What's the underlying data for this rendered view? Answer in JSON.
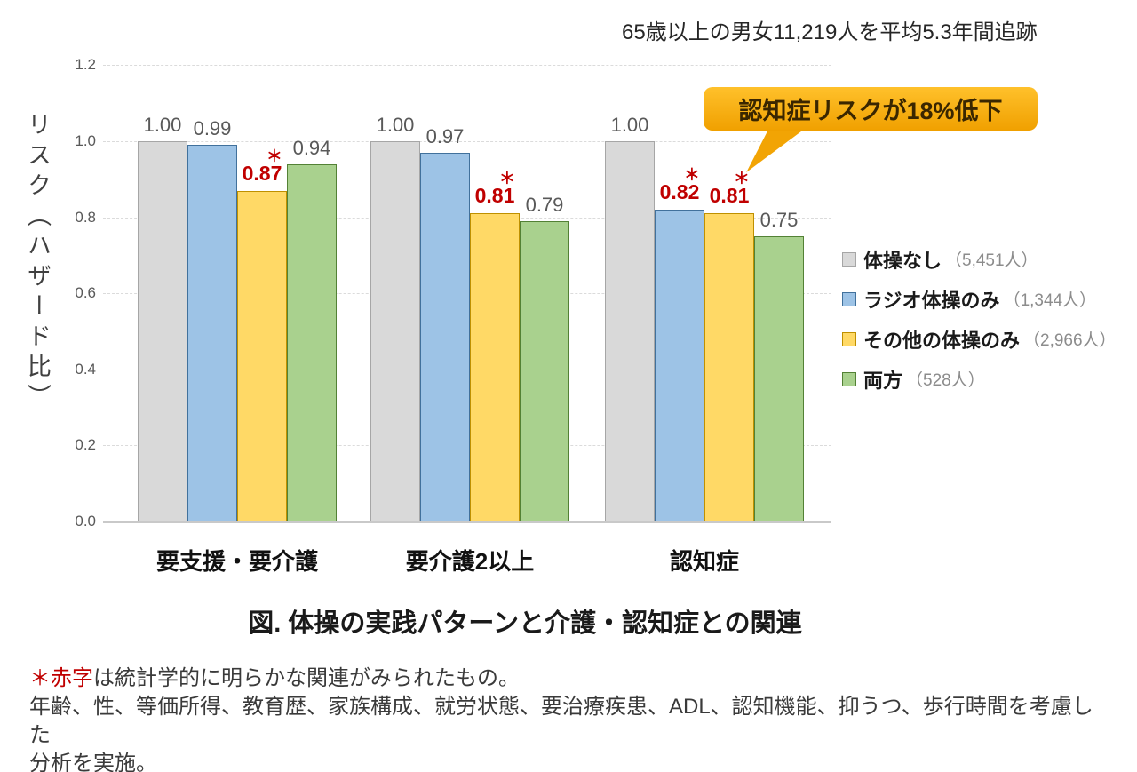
{
  "header": {
    "annotation": "65歳以上の男女11,219人を平均5.3年間追跡"
  },
  "chart_data": {
    "type": "bar",
    "title": "図. 体操の実践パターンと介護・認知症との関連",
    "ylabel": "リスク（ハザード比）",
    "xlabel": "",
    "ylim": [
      0,
      1.2
    ],
    "yticks": [
      1.2,
      1.0,
      0.8,
      0.6,
      0.4,
      0.2,
      0.0
    ],
    "ytick_labels": [
      "1.2",
      "1.0",
      "0.8",
      "0.6",
      "0.4",
      "0.2",
      "0.0"
    ],
    "grid": "horizontal dashed",
    "legend_position": "right",
    "categories": [
      "要支援・要介護",
      "要介護2以上",
      "認知症"
    ],
    "series": [
      {
        "name": "体操なし",
        "count_label": "（5,451人）",
        "fill": "#D9D9D9",
        "border": "#A6A6A6",
        "values": [
          1.0,
          1.0,
          1.0
        ],
        "value_labels": [
          "1.00",
          "1.00",
          "1.00"
        ],
        "significant": [
          false,
          false,
          false
        ]
      },
      {
        "name": "ラジオ体操のみ",
        "count_label": "（1,344人）",
        "fill": "#9DC3E6",
        "border": "#41719C",
        "values": [
          0.99,
          0.97,
          0.82
        ],
        "value_labels": [
          "0.99",
          "0.97",
          "0.82"
        ],
        "significant": [
          false,
          false,
          true
        ]
      },
      {
        "name": "その他の体操のみ",
        "count_label": "（2,966人）",
        "fill": "#FFD966",
        "border": "#BF9000",
        "values": [
          0.87,
          0.81,
          0.81
        ],
        "value_labels": [
          "0.87",
          "0.81",
          "0.81"
        ],
        "significant": [
          true,
          true,
          true
        ]
      },
      {
        "name": "両方",
        "count_label": "（528人）",
        "fill": "#A9D18E",
        "border": "#538135",
        "values": [
          0.94,
          0.79,
          0.75
        ],
        "value_labels": [
          "0.94",
          "0.79",
          "0.75"
        ],
        "significant": [
          false,
          false,
          false
        ]
      }
    ],
    "significance_marker": "＊",
    "significance_color": "#C00000"
  },
  "callout": {
    "text": "認知症リスクが18%低下",
    "bg_top": "#FFC12B",
    "bg_bottom": "#F0A000",
    "text_color": "#3A2600"
  },
  "footnotes": {
    "marker": "＊",
    "red_term": "赤字",
    "line1_rest": "は統計学的に明らかな関連がみられたもの。",
    "line2": "年齢、性、等価所得、教育歴、家族構成、就労状態、要治療疾患、ADL、認知機能、抑うつ、歩行時間を考慮した",
    "line3": "分析を実施。"
  }
}
